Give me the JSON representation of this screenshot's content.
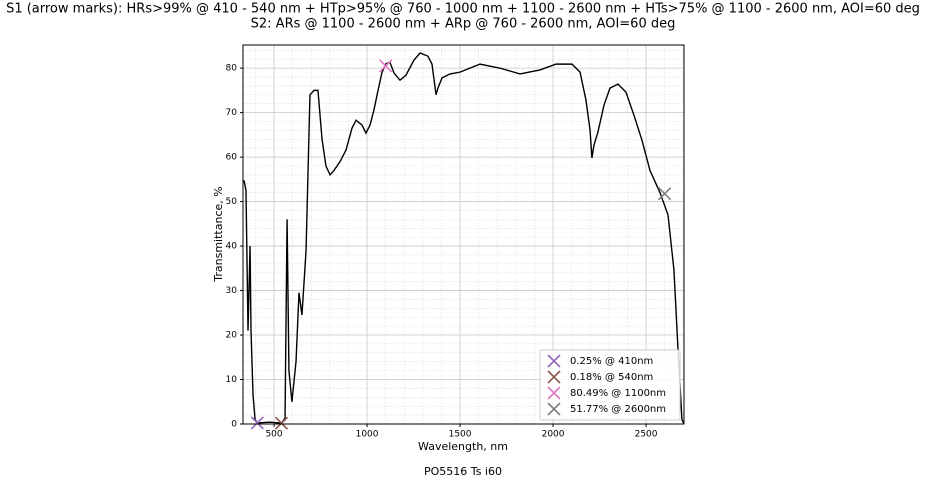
{
  "chart_data": {
    "type": "line",
    "title": [
      "S1 (arrow marks): HRs>99% @ 410 - 540 nm + HTp>95% @ 760 - 1000 nm + 1100 - 2600 nm + HTs>75% @ 1100 - 2600 nm, AOI=60 deg",
      "S2: ARs @ 1100 - 2600 nm + ARp @ 760 - 2600 nm, AOI=60 deg"
    ],
    "xlabel": "Wavelength, nm",
    "ylabel": "Transmittance, %",
    "footer": "PO5516 Ts i60",
    "xlim": [
      333,
      2704
    ],
    "ylim": [
      0,
      85.2
    ],
    "xticks": [
      500,
      1000,
      1500,
      2000,
      2500
    ],
    "yticks": [
      0,
      10,
      20,
      30,
      40,
      50,
      60,
      70,
      80
    ],
    "grid": true,
    "minor_grid": true,
    "legend": "lower right",
    "series": [
      {
        "color": "#000000",
        "x": [
          338,
          349,
          360,
          371,
          376,
          387,
          398,
          410,
          478,
          540,
          559,
          570,
          580,
          596,
          618,
          634,
          650,
          672,
          693,
          715,
          736,
          758,
          779,
          801,
          822,
          855,
          887,
          919,
          941,
          973,
          994,
          1016,
          1037,
          1059,
          1080,
          1102,
          1123,
          1145,
          1177,
          1209,
          1252,
          1285,
          1327,
          1349,
          1371,
          1381,
          1403,
          1446,
          1500,
          1607,
          1715,
          1822,
          1930,
          2016,
          2102,
          2145,
          2177,
          2199,
          2209,
          2220,
          2241,
          2274,
          2306,
          2349,
          2392,
          2435,
          2478,
          2521,
          2575,
          2618,
          2650,
          2672,
          2693,
          2704
        ],
        "values": [
          54.8,
          52.6,
          21,
          40,
          21,
          6.5,
          1,
          0.25,
          0.4,
          0.18,
          1.3,
          46,
          12,
          5,
          14,
          29.5,
          24.5,
          39,
          74,
          75,
          75,
          64,
          58,
          56,
          57,
          59,
          61.6,
          66.5,
          68.3,
          67.2,
          65.4,
          67.2,
          70.6,
          75,
          79,
          81,
          81.3,
          78.9,
          77.3,
          78.4,
          81.8,
          83.4,
          82.7,
          80.9,
          74,
          75.5,
          77.8,
          78.7,
          79.1,
          80.9,
          80,
          78.7,
          79.6,
          80.9,
          80.9,
          79.1,
          72.8,
          66,
          59.8,
          62.7,
          65.6,
          71.7,
          75.5,
          76.4,
          74.6,
          69.4,
          63.8,
          57,
          52,
          47,
          34.6,
          16.6,
          1,
          0
        ]
      }
    ],
    "markers": [
      {
        "name": "0.25% @ 410nm",
        "color": "#9467bd",
        "x": 410,
        "value": 0.25
      },
      {
        "name": "0.18% @ 540nm",
        "color": "#8c564b",
        "x": 540,
        "value": 0.18
      },
      {
        "name": "80.49% @ 1100nm",
        "color": "#e377c2",
        "x": 1100,
        "value": 80.49
      },
      {
        "name": "51.77% @ 2600nm",
        "color": "#7f7f7f",
        "x": 2600,
        "value": 51.77
      }
    ]
  }
}
